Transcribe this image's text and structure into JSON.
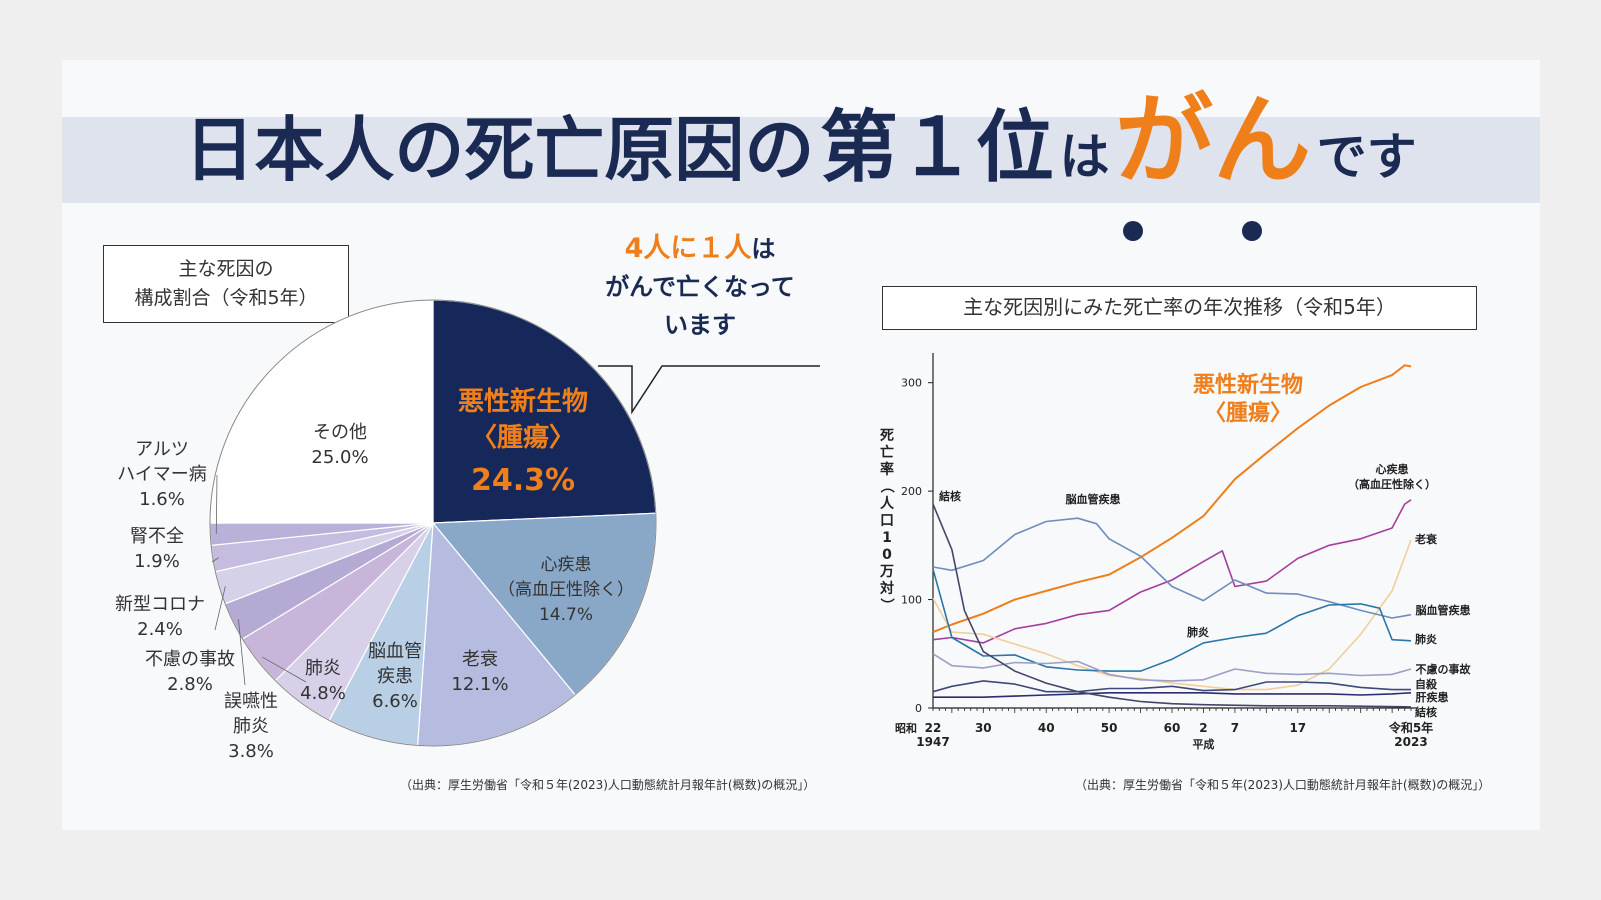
{
  "title": {
    "part1": "日本人の死亡原因の",
    "part2": "第１位",
    "part3": "は",
    "part4": "がん",
    "part5": "です"
  },
  "callout": {
    "line1_accent_a": "4人に１人",
    "line1_rest": "は",
    "line2": "がんで亡くなって",
    "line3": "います"
  },
  "colors": {
    "navy": "#1b2a52",
    "orange": "#ee7f1a",
    "band": "#dfe3ee"
  },
  "pie_chart_label": {
    "line1": "主な死因の",
    "line2": "構成割合（令和5年）"
  },
  "trend_chart_label": "主な死因別にみた死亡率の年次推移（令和5年）",
  "source_left": "（出典：厚生労働省「令和５年(2023)人口動態統計月報年計(概数)の概況」）",
  "source_right": "（出典：厚生労働省「令和５年(2023)人口動態統計月報年計(概数)の概況」）",
  "chart_data": [
    {
      "type": "pie",
      "title": "主な死因の構成割合（令和5年）",
      "slices": [
        {
          "name": "悪性新生物〈腫瘍〉",
          "name_l1": "悪性新生物",
          "name_l2": "〈腫瘍〉",
          "value": 24.3,
          "label": "24.3%",
          "color": "#16285a"
        },
        {
          "name": "心疾患（高血圧性除く）",
          "name_l1": "心疾患",
          "name_l2": "（高血圧性除く）",
          "value": 14.7,
          "label": "14.7%",
          "color": "#89a8c8"
        },
        {
          "name": "老衰",
          "name_l1": "老衰",
          "name_l2": "",
          "value": 12.1,
          "label": "12.1%",
          "color": "#b5bcdf"
        },
        {
          "name": "脳血管疾患",
          "name_l1": "脳血管",
          "name_l2": "疾患",
          "value": 6.6,
          "label": "6.6%",
          "color": "#b8cfe6"
        },
        {
          "name": "肺炎",
          "name_l1": "肺炎",
          "name_l2": "",
          "value": 4.8,
          "label": "4.8%",
          "color": "#d7d0e8"
        },
        {
          "name": "誤嚥性肺炎",
          "name_l1": "誤嚥性",
          "name_l2": "肺炎",
          "value": 3.8,
          "label": "3.8%",
          "color": "#c8b6da"
        },
        {
          "name": "不慮の事故",
          "name_l1": "不慮の事故",
          "name_l2": "",
          "value": 2.8,
          "label": "2.8%",
          "color": "#b4aad4"
        },
        {
          "name": "新型コロナ",
          "name_l1": "新型コロナ",
          "name_l2": "",
          "value": 2.4,
          "label": "2.4%",
          "color": "#d5d1e9"
        },
        {
          "name": "腎不全",
          "name_l1": "腎不全",
          "name_l2": "",
          "value": 1.9,
          "label": "1.9%",
          "color": "#c5bcdf"
        },
        {
          "name": "アルツハイマー病",
          "name_l1": "アルツ",
          "name_l2": "ハイマー病",
          "value": 1.6,
          "label": "1.6%",
          "color": "#b9b1d8"
        },
        {
          "name": "その他",
          "name_l1": "その他",
          "name_l2": "",
          "value": 25.0,
          "label": "25.0%",
          "color": "#ffffff"
        }
      ]
    },
    {
      "type": "line",
      "title": "主な死因別にみた死亡率の年次推移（令和5年）",
      "ylabel": "死亡率（人口10万対）",
      "xlabel": "平成",
      "xlim": [
        1947,
        2023
      ],
      "ylim": [
        0,
        320
      ],
      "yticks": [
        0,
        100,
        200,
        300
      ],
      "xticks": [
        {
          "year": 1947,
          "label": "22",
          "sub": "1947"
        },
        {
          "year": 1955,
          "label": "30"
        },
        {
          "year": 1965,
          "label": "40"
        },
        {
          "year": 1975,
          "label": "50"
        },
        {
          "year": 1985,
          "label": "60"
        },
        {
          "year": 1990,
          "label": "2"
        },
        {
          "year": 1995,
          "label": "7"
        },
        {
          "year": 2005,
          "label": "17"
        },
        {
          "year": 2023,
          "label": "令和5年",
          "sub": "2023"
        }
      ],
      "x_prefix": "昭和",
      "series": [
        {
          "name": "悪性新生物〈腫瘍〉",
          "label_l1": "悪性新生物",
          "label_l2": "〈腫瘍〉",
          "color": "#ee7f1a",
          "points": [
            [
              1947,
              70
            ],
            [
              1950,
              77
            ],
            [
              1955,
              87
            ],
            [
              1960,
              100
            ],
            [
              1965,
              108
            ],
            [
              1970,
              116
            ],
            [
              1975,
              123
            ],
            [
              1980,
              139
            ],
            [
              1985,
              157
            ],
            [
              1990,
              177
            ],
            [
              1995,
              211
            ],
            [
              2000,
              235
            ],
            [
              2005,
              258
            ],
            [
              2010,
              279
            ],
            [
              2015,
              296
            ],
            [
              2020,
              307
            ],
            [
              2022,
              316
            ],
            [
              2023,
              315
            ]
          ]
        },
        {
          "name": "心疾患（高血圧性除く）",
          "label_l1": "心疾患",
          "label_l2": "（高血圧性除く）",
          "color": "#a43e9e",
          "points": [
            [
              1947,
              63
            ],
            [
              1950,
              65
            ],
            [
              1955,
              60
            ],
            [
              1960,
              73
            ],
            [
              1965,
              78
            ],
            [
              1970,
              86
            ],
            [
              1975,
              90
            ],
            [
              1980,
              107
            ],
            [
              1985,
              118
            ],
            [
              1990,
              135
            ],
            [
              1993,
              145
            ],
            [
              1995,
              112
            ],
            [
              2000,
              117
            ],
            [
              2005,
              138
            ],
            [
              2010,
              150
            ],
            [
              2015,
              156
            ],
            [
              2020,
              166
            ],
            [
              2022,
              188
            ],
            [
              2023,
              192
            ]
          ]
        },
        {
          "name": "老衰",
          "label_l1": "老衰",
          "color": "#f1cf9a",
          "points": [
            [
              1947,
              101
            ],
            [
              1950,
              70
            ],
            [
              1955,
              68
            ],
            [
              1960,
              59
            ],
            [
              1965,
              50
            ],
            [
              1970,
              39
            ],
            [
              1975,
              30
            ],
            [
              1980,
              27
            ],
            [
              1985,
              23
            ],
            [
              1990,
              20
            ],
            [
              1995,
              17
            ],
            [
              2000,
              17
            ],
            [
              2005,
              21
            ],
            [
              2010,
              36
            ],
            [
              2015,
              68
            ],
            [
              2020,
              108
            ],
            [
              2023,
              155
            ]
          ]
        },
        {
          "name": "脳血管疾患",
          "label_l1": "脳血管疾患",
          "color": "#6f8dbd",
          "points": [
            [
              1947,
              130
            ],
            [
              1950,
              127
            ],
            [
              1955,
              136
            ],
            [
              1960,
              160
            ],
            [
              1965,
              172
            ],
            [
              1970,
              175
            ],
            [
              1973,
              170
            ],
            [
              1975,
              156
            ],
            [
              1980,
              140
            ],
            [
              1985,
              112
            ],
            [
              1990,
              99
            ],
            [
              1995,
              118
            ],
            [
              2000,
              106
            ],
            [
              2005,
              105
            ],
            [
              2010,
              98
            ],
            [
              2015,
              90
            ],
            [
              2020,
              83
            ],
            [
              2023,
              86
            ]
          ]
        },
        {
          "name": "肺炎",
          "label_l1": "肺炎",
          "color": "#2a76a8",
          "points": [
            [
              1947,
              128
            ],
            [
              1950,
              65
            ],
            [
              1955,
              48
            ],
            [
              1960,
              49
            ],
            [
              1965,
              38
            ],
            [
              1970,
              35
            ],
            [
              1975,
              34
            ],
            [
              1980,
              34
            ],
            [
              1985,
              45
            ],
            [
              1990,
              60
            ],
            [
              1995,
              65
            ],
            [
              2000,
              69
            ],
            [
              2005,
              85
            ],
            [
              2010,
              95
            ],
            [
              2015,
              96
            ],
            [
              2018,
              92
            ],
            [
              2020,
              63
            ],
            [
              2023,
              62
            ]
          ]
        },
        {
          "name": "不慮の事故",
          "label_l1": "不慮の事故",
          "color": "#9c9fc6",
          "points": [
            [
              1947,
              50
            ],
            [
              1950,
              39
            ],
            [
              1955,
              37
            ],
            [
              1960,
              42
            ],
            [
              1965,
              41
            ],
            [
              1970,
              43
            ],
            [
              1975,
              31
            ],
            [
              1980,
              26
            ],
            [
              1985,
              25
            ],
            [
              1990,
              26
            ],
            [
              1995,
              36
            ],
            [
              2000,
              32
            ],
            [
              2005,
              31
            ],
            [
              2010,
              32
            ],
            [
              2015,
              30
            ],
            [
              2020,
              31
            ],
            [
              2023,
              36
            ]
          ]
        },
        {
          "name": "自殺",
          "label_l1": "自殺",
          "color": "#3e4a7a",
          "points": [
            [
              1947,
              15
            ],
            [
              1950,
              20
            ],
            [
              1955,
              25
            ],
            [
              1960,
              22
            ],
            [
              1965,
              15
            ],
            [
              1970,
              15
            ],
            [
              1975,
              18
            ],
            [
              1980,
              18
            ],
            [
              1985,
              20
            ],
            [
              1990,
              16
            ],
            [
              1995,
              17
            ],
            [
              2000,
              24
            ],
            [
              2005,
              24
            ],
            [
              2010,
              23
            ],
            [
              2015,
              19
            ],
            [
              2020,
              17
            ],
            [
              2023,
              17
            ]
          ]
        },
        {
          "name": "肝疾患",
          "label_l1": "肝疾患",
          "color": "#2c2c6e",
          "points": [
            [
              1947,
              10
            ],
            [
              1950,
              10
            ],
            [
              1955,
              10
            ],
            [
              1960,
              11
            ],
            [
              1965,
              12
            ],
            [
              1970,
              13
            ],
            [
              1975,
              14
            ],
            [
              1980,
              14
            ],
            [
              1985,
              14
            ],
            [
              1990,
              14
            ],
            [
              1995,
              13
            ],
            [
              2000,
              13
            ],
            [
              2005,
              13
            ],
            [
              2010,
              13
            ],
            [
              2015,
              12
            ],
            [
              2020,
              13
            ],
            [
              2023,
              14
            ]
          ]
        },
        {
          "name": "結核",
          "label_l1": "結核",
          "color": "#45456a",
          "points": [
            [
              1947,
              188
            ],
            [
              1950,
              146
            ],
            [
              1952,
              90
            ],
            [
              1955,
              52
            ],
            [
              1960,
              34
            ],
            [
              1965,
              23
            ],
            [
              1970,
              15
            ],
            [
              1975,
              10
            ],
            [
              1980,
              6
            ],
            [
              1985,
              4
            ],
            [
              1990,
              3
            ],
            [
              2000,
              2
            ],
            [
              2010,
              2
            ],
            [
              2023,
              1
            ]
          ]
        }
      ]
    }
  ]
}
